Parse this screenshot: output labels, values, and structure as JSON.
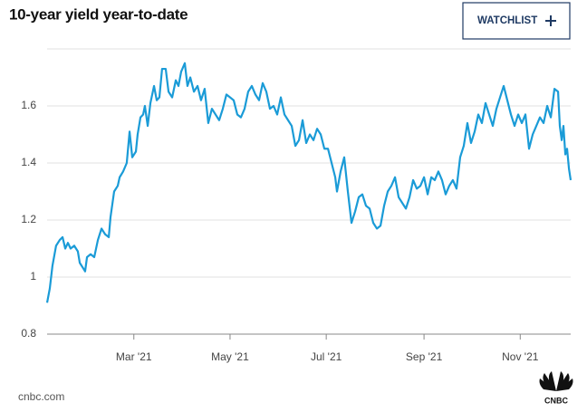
{
  "chart_data": {
    "type": "line",
    "title": "10-year yield year-to-date",
    "color": "#1a9bd7",
    "grid": true,
    "xlim": [
      5,
      337
    ],
    "xticks": [
      {
        "value": 60,
        "label": "Mar '21"
      },
      {
        "value": 121,
        "label": "May '21"
      },
      {
        "value": 182,
        "label": "Jul '21"
      },
      {
        "value": 244,
        "label": "Sep '21"
      },
      {
        "value": 305,
        "label": "Nov '21"
      }
    ],
    "ylim": [
      0.8,
      1.8
    ],
    "yticks": [
      {
        "value": 0.8,
        "label": "0.8"
      },
      1,
      1.2,
      1.4,
      1.6
    ],
    "x": [
      5.0,
      6.7,
      8.4,
      10.7,
      13.0,
      14.8,
      16.5,
      18.2,
      19.9,
      22.2,
      24.5,
      25.7,
      28.0,
      29.1,
      30.3,
      32.6,
      34.9,
      37.2,
      39.5,
      41.8,
      44.1,
      45.2,
      47.5,
      49.8,
      51.0,
      53.2,
      55.5,
      57.3,
      59.0,
      61.3,
      62.4,
      64.2,
      65.9,
      67.0,
      68.8,
      70.5,
      72.8,
      74.5,
      76.2,
      77.9,
      80.2,
      82.0,
      84.3,
      86.6,
      88.3,
      90.0,
      92.3,
      94.0,
      95.8,
      98.1,
      100.4,
      102.6,
      104.9,
      107.2,
      109.5,
      111.8,
      114.1,
      116.4,
      118.7,
      121.0,
      123.3,
      125.6,
      127.9,
      130.2,
      132.5,
      134.8,
      137.1,
      139.4,
      141.7,
      144.0,
      146.3,
      148.6,
      150.9,
      153.2,
      155.5,
      157.8,
      160.1,
      162.4,
      164.7,
      167.0,
      169.3,
      171.6,
      173.9,
      176.2,
      178.5,
      180.8,
      183.1,
      185.4,
      187.7,
      188.8,
      191.1,
      193.4,
      195.7,
      198.0,
      200.3,
      202.6,
      204.9,
      207.2,
      209.5,
      211.8,
      214.1,
      216.4,
      218.7,
      221.0,
      223.3,
      225.6,
      227.9,
      230.2,
      232.5,
      234.8,
      237.1,
      239.4,
      241.7,
      244.0,
      246.3,
      248.6,
      250.8,
      253.1,
      255.4,
      257.7,
      260.0,
      262.3,
      264.6,
      266.9,
      269.2,
      271.5,
      273.8,
      276.1,
      278.4,
      280.7,
      283.0,
      285.3,
      287.6,
      289.9,
      292.2,
      294.5,
      296.8,
      299.1,
      301.4,
      303.7,
      306.0,
      308.3,
      310.6,
      312.9,
      315.2,
      317.5,
      319.8,
      322.1,
      324.4,
      326.7,
      329.0,
      330.1,
      331.3,
      332.4,
      333.6,
      334.7,
      335.9,
      337.0
    ],
    "values": [
      0.91,
      0.96,
      1.04,
      1.11,
      1.13,
      1.14,
      1.1,
      1.12,
      1.1,
      1.11,
      1.09,
      1.05,
      1.03,
      1.02,
      1.07,
      1.08,
      1.07,
      1.13,
      1.17,
      1.15,
      1.14,
      1.21,
      1.3,
      1.32,
      1.35,
      1.37,
      1.4,
      1.51,
      1.42,
      1.44,
      1.5,
      1.56,
      1.57,
      1.6,
      1.53,
      1.61,
      1.67,
      1.62,
      1.63,
      1.73,
      1.73,
      1.65,
      1.63,
      1.69,
      1.67,
      1.72,
      1.75,
      1.67,
      1.7,
      1.65,
      1.67,
      1.62,
      1.66,
      1.54,
      1.59,
      1.57,
      1.55,
      1.59,
      1.64,
      1.63,
      1.62,
      1.57,
      1.56,
      1.59,
      1.65,
      1.67,
      1.64,
      1.62,
      1.68,
      1.65,
      1.59,
      1.6,
      1.57,
      1.63,
      1.57,
      1.55,
      1.53,
      1.46,
      1.48,
      1.55,
      1.47,
      1.5,
      1.48,
      1.52,
      1.5,
      1.45,
      1.45,
      1.4,
      1.35,
      1.3,
      1.37,
      1.42,
      1.3,
      1.19,
      1.23,
      1.28,
      1.29,
      1.25,
      1.24,
      1.19,
      1.17,
      1.18,
      1.25,
      1.3,
      1.32,
      1.35,
      1.28,
      1.26,
      1.24,
      1.28,
      1.34,
      1.31,
      1.32,
      1.35,
      1.29,
      1.35,
      1.34,
      1.37,
      1.34,
      1.29,
      1.32,
      1.34,
      1.31,
      1.42,
      1.46,
      1.54,
      1.47,
      1.51,
      1.57,
      1.54,
      1.61,
      1.57,
      1.53,
      1.59,
      1.63,
      1.67,
      1.62,
      1.57,
      1.53,
      1.57,
      1.54,
      1.57,
      1.45,
      1.5,
      1.53,
      1.56,
      1.54,
      1.6,
      1.56,
      1.66,
      1.65,
      1.53,
      1.48,
      1.53,
      1.43,
      1.45,
      1.38,
      1.34
    ]
  },
  "watchlist_button": "WATCHLIST",
  "source": "cnbc.com",
  "logo_text": "CNBC"
}
